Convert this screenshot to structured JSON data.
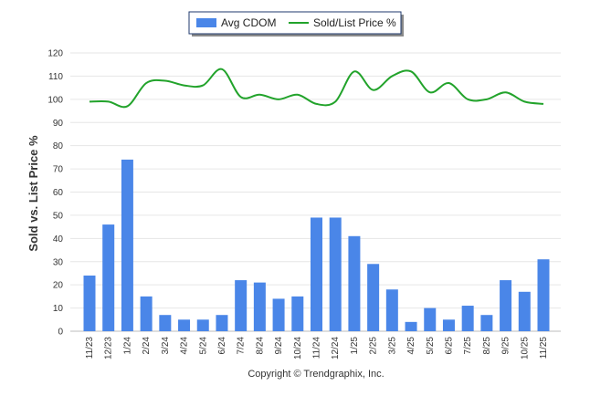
{
  "chart_data": {
    "type": "bar",
    "categories": [
      "11/23",
      "12/23",
      "1/24",
      "2/24",
      "3/24",
      "4/24",
      "5/24",
      "6/24",
      "7/24",
      "8/24",
      "9/24",
      "10/24",
      "11/24",
      "12/24",
      "1/25",
      "2/25",
      "3/25",
      "4/25",
      "5/25",
      "6/25",
      "7/25",
      "8/25",
      "9/25",
      "10/25",
      "11/25"
    ],
    "series": [
      {
        "name": "Avg CDOM",
        "type": "bar",
        "color": "#4a86e8",
        "values": [
          24,
          46,
          74,
          15,
          7,
          5,
          5,
          7,
          22,
          21,
          14,
          15,
          49,
          49,
          41,
          29,
          18,
          4,
          10,
          5,
          11,
          7,
          22,
          17,
          31
        ]
      },
      {
        "name": "Sold/List Price %",
        "type": "line",
        "color": "#22a32b",
        "values": [
          99,
          99,
          97,
          107,
          108,
          106,
          106,
          113,
          101,
          102,
          100,
          102,
          98,
          99,
          112,
          104,
          110,
          112,
          103,
          107,
          100,
          100,
          103,
          99,
          98
        ]
      }
    ],
    "ylabel": "Sold vs. List Price %",
    "xlabel": "",
    "ylim": [
      0,
      120
    ],
    "yticks": [
      0,
      10,
      20,
      30,
      40,
      50,
      60,
      70,
      80,
      90,
      100,
      110,
      120
    ],
    "grid": true,
    "legend_position": "top-center"
  },
  "footer": {
    "copyright": "Copyright © Trendgraphix, Inc."
  }
}
